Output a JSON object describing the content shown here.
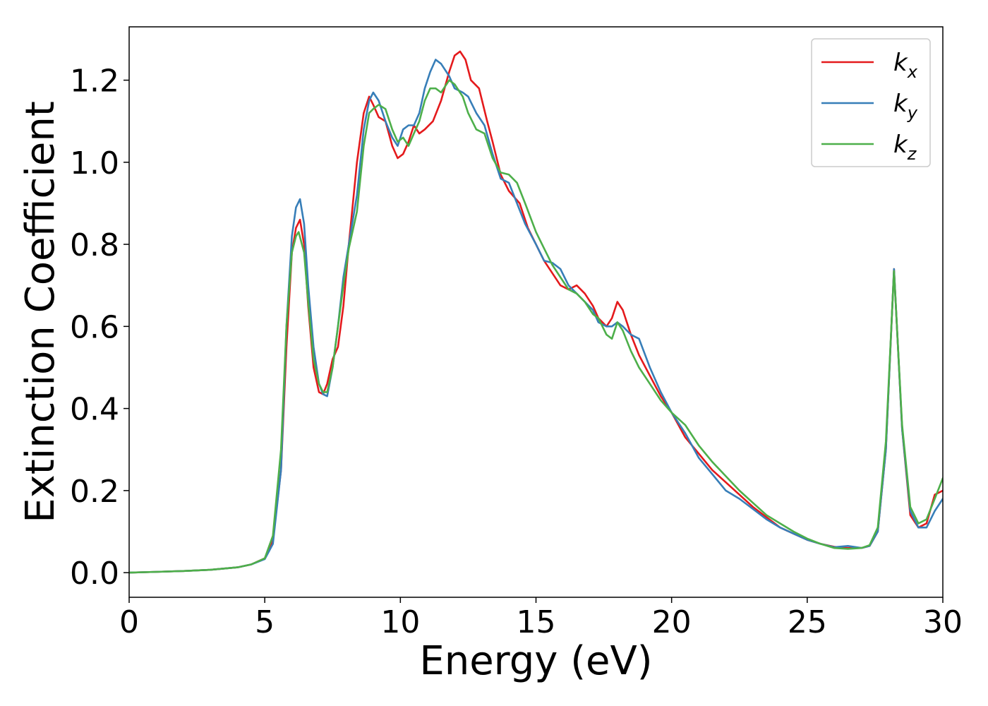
{
  "chart_data": {
    "type": "line",
    "xlabel": "Energy (eV)",
    "ylabel": "Extinction Coefficient",
    "xlim": [
      0,
      30
    ],
    "ylim": [
      -0.06,
      1.33
    ],
    "xticks": [
      0,
      5,
      10,
      15,
      20,
      25,
      30
    ],
    "yticks": [
      0.0,
      0.2,
      0.4,
      0.6,
      0.8,
      1.0,
      1.2
    ],
    "xtick_labels": [
      "0",
      "5",
      "10",
      "15",
      "20",
      "25",
      "30"
    ],
    "ytick_labels": [
      "0.0",
      "0.2",
      "0.4",
      "0.6",
      "0.8",
      "1.0",
      "1.2"
    ],
    "grid": false,
    "legend_position": "top-right",
    "series": [
      {
        "name": "k",
        "subscript": "x",
        "color": "#e41a1c",
        "points": [
          [
            0,
            0.0
          ],
          [
            1,
            0.002
          ],
          [
            2,
            0.004
          ],
          [
            3,
            0.007
          ],
          [
            4,
            0.013
          ],
          [
            4.5,
            0.02
          ],
          [
            5.0,
            0.035
          ],
          [
            5.3,
            0.08
          ],
          [
            5.6,
            0.25
          ],
          [
            5.8,
            0.55
          ],
          [
            6.0,
            0.78
          ],
          [
            6.15,
            0.84
          ],
          [
            6.3,
            0.86
          ],
          [
            6.45,
            0.8
          ],
          [
            6.6,
            0.65
          ],
          [
            6.8,
            0.5
          ],
          [
            7.0,
            0.44
          ],
          [
            7.15,
            0.435
          ],
          [
            7.3,
            0.46
          ],
          [
            7.5,
            0.52
          ],
          [
            7.7,
            0.55
          ],
          [
            7.9,
            0.65
          ],
          [
            8.1,
            0.8
          ],
          [
            8.4,
            1.0
          ],
          [
            8.65,
            1.12
          ],
          [
            8.85,
            1.16
          ],
          [
            9.0,
            1.14
          ],
          [
            9.2,
            1.11
          ],
          [
            9.45,
            1.1
          ],
          [
            9.7,
            1.04
          ],
          [
            9.9,
            1.01
          ],
          [
            10.1,
            1.02
          ],
          [
            10.3,
            1.05
          ],
          [
            10.5,
            1.09
          ],
          [
            10.7,
            1.07
          ],
          [
            10.9,
            1.08
          ],
          [
            11.2,
            1.1
          ],
          [
            11.5,
            1.15
          ],
          [
            11.8,
            1.22
          ],
          [
            12.0,
            1.26
          ],
          [
            12.2,
            1.27
          ],
          [
            12.4,
            1.25
          ],
          [
            12.6,
            1.2
          ],
          [
            12.9,
            1.18
          ],
          [
            13.2,
            1.1
          ],
          [
            13.4,
            1.05
          ],
          [
            13.7,
            0.97
          ],
          [
            14.0,
            0.93
          ],
          [
            14.4,
            0.9
          ],
          [
            14.7,
            0.84
          ],
          [
            15.0,
            0.8
          ],
          [
            15.3,
            0.76
          ],
          [
            15.6,
            0.73
          ],
          [
            15.9,
            0.7
          ],
          [
            16.2,
            0.69
          ],
          [
            16.5,
            0.7
          ],
          [
            16.8,
            0.68
          ],
          [
            17.1,
            0.65
          ],
          [
            17.3,
            0.62
          ],
          [
            17.6,
            0.6
          ],
          [
            17.8,
            0.62
          ],
          [
            18.0,
            0.66
          ],
          [
            18.2,
            0.64
          ],
          [
            18.5,
            0.58
          ],
          [
            18.8,
            0.53
          ],
          [
            19.2,
            0.48
          ],
          [
            19.6,
            0.43
          ],
          [
            20.0,
            0.39
          ],
          [
            20.5,
            0.33
          ],
          [
            21.0,
            0.29
          ],
          [
            21.5,
            0.25
          ],
          [
            22.0,
            0.22
          ],
          [
            22.5,
            0.19
          ],
          [
            23.0,
            0.16
          ],
          [
            23.5,
            0.135
          ],
          [
            24.0,
            0.11
          ],
          [
            24.5,
            0.095
          ],
          [
            25.0,
            0.08
          ],
          [
            25.5,
            0.07
          ],
          [
            26.0,
            0.063
          ],
          [
            26.5,
            0.06
          ],
          [
            27.0,
            0.06
          ],
          [
            27.3,
            0.065
          ],
          [
            27.6,
            0.1
          ],
          [
            27.9,
            0.3
          ],
          [
            28.2,
            0.74
          ],
          [
            28.5,
            0.35
          ],
          [
            28.8,
            0.14
          ],
          [
            29.1,
            0.11
          ],
          [
            29.4,
            0.12
          ],
          [
            29.7,
            0.19
          ],
          [
            30.0,
            0.2
          ]
        ]
      },
      {
        "name": "k",
        "subscript": "y",
        "color": "#377eb8",
        "points": [
          [
            0,
            0.0
          ],
          [
            1,
            0.002
          ],
          [
            2,
            0.004
          ],
          [
            3,
            0.007
          ],
          [
            4,
            0.013
          ],
          [
            4.5,
            0.02
          ],
          [
            5.0,
            0.033
          ],
          [
            5.3,
            0.07
          ],
          [
            5.6,
            0.25
          ],
          [
            5.8,
            0.6
          ],
          [
            6.0,
            0.82
          ],
          [
            6.15,
            0.89
          ],
          [
            6.3,
            0.91
          ],
          [
            6.45,
            0.85
          ],
          [
            6.6,
            0.7
          ],
          [
            6.8,
            0.55
          ],
          [
            7.0,
            0.46
          ],
          [
            7.15,
            0.435
          ],
          [
            7.3,
            0.43
          ],
          [
            7.5,
            0.5
          ],
          [
            7.7,
            0.6
          ],
          [
            7.9,
            0.72
          ],
          [
            8.1,
            0.8
          ],
          [
            8.4,
            0.92
          ],
          [
            8.65,
            1.08
          ],
          [
            8.85,
            1.15
          ],
          [
            9.0,
            1.17
          ],
          [
            9.2,
            1.15
          ],
          [
            9.45,
            1.1
          ],
          [
            9.7,
            1.06
          ],
          [
            9.9,
            1.04
          ],
          [
            10.1,
            1.08
          ],
          [
            10.3,
            1.09
          ],
          [
            10.5,
            1.09
          ],
          [
            10.7,
            1.12
          ],
          [
            10.9,
            1.18
          ],
          [
            11.1,
            1.22
          ],
          [
            11.3,
            1.25
          ],
          [
            11.5,
            1.24
          ],
          [
            11.8,
            1.21
          ],
          [
            12.0,
            1.18
          ],
          [
            12.3,
            1.17
          ],
          [
            12.5,
            1.16
          ],
          [
            12.8,
            1.12
          ],
          [
            13.1,
            1.09
          ],
          [
            13.4,
            1.02
          ],
          [
            13.7,
            0.96
          ],
          [
            14.0,
            0.95
          ],
          [
            14.3,
            0.9
          ],
          [
            14.6,
            0.85
          ],
          [
            15.0,
            0.8
          ],
          [
            15.3,
            0.76
          ],
          [
            15.6,
            0.755
          ],
          [
            15.9,
            0.74
          ],
          [
            16.2,
            0.7
          ],
          [
            16.5,
            0.68
          ],
          [
            16.8,
            0.66
          ],
          [
            17.1,
            0.64
          ],
          [
            17.3,
            0.61
          ],
          [
            17.6,
            0.6
          ],
          [
            17.8,
            0.6
          ],
          [
            18.0,
            0.61
          ],
          [
            18.2,
            0.6
          ],
          [
            18.5,
            0.58
          ],
          [
            18.8,
            0.57
          ],
          [
            19.2,
            0.5
          ],
          [
            19.6,
            0.44
          ],
          [
            20.0,
            0.39
          ],
          [
            20.5,
            0.34
          ],
          [
            21.0,
            0.28
          ],
          [
            21.5,
            0.24
          ],
          [
            22.0,
            0.2
          ],
          [
            22.5,
            0.18
          ],
          [
            23.0,
            0.155
          ],
          [
            23.5,
            0.13
          ],
          [
            24.0,
            0.11
          ],
          [
            24.5,
            0.095
          ],
          [
            25.0,
            0.08
          ],
          [
            25.5,
            0.07
          ],
          [
            26.0,
            0.062
          ],
          [
            26.5,
            0.065
          ],
          [
            27.0,
            0.06
          ],
          [
            27.3,
            0.065
          ],
          [
            27.6,
            0.1
          ],
          [
            27.9,
            0.3
          ],
          [
            28.2,
            0.74
          ],
          [
            28.5,
            0.35
          ],
          [
            28.8,
            0.15
          ],
          [
            29.1,
            0.11
          ],
          [
            29.4,
            0.11
          ],
          [
            29.7,
            0.15
          ],
          [
            30.0,
            0.18
          ]
        ]
      },
      {
        "name": "k",
        "subscript": "z",
        "color": "#4daf4a",
        "points": [
          [
            0,
            0.0
          ],
          [
            1,
            0.002
          ],
          [
            2,
            0.004
          ],
          [
            3,
            0.007
          ],
          [
            4,
            0.013
          ],
          [
            4.5,
            0.02
          ],
          [
            5.0,
            0.035
          ],
          [
            5.3,
            0.09
          ],
          [
            5.6,
            0.3
          ],
          [
            5.8,
            0.6
          ],
          [
            6.0,
            0.78
          ],
          [
            6.15,
            0.82
          ],
          [
            6.25,
            0.83
          ],
          [
            6.45,
            0.78
          ],
          [
            6.6,
            0.66
          ],
          [
            6.8,
            0.52
          ],
          [
            7.0,
            0.46
          ],
          [
            7.15,
            0.44
          ],
          [
            7.3,
            0.44
          ],
          [
            7.5,
            0.5
          ],
          [
            7.7,
            0.6
          ],
          [
            7.9,
            0.7
          ],
          [
            8.1,
            0.79
          ],
          [
            8.4,
            0.88
          ],
          [
            8.65,
            1.04
          ],
          [
            8.85,
            1.12
          ],
          [
            9.0,
            1.13
          ],
          [
            9.2,
            1.14
          ],
          [
            9.45,
            1.13
          ],
          [
            9.7,
            1.08
          ],
          [
            9.9,
            1.05
          ],
          [
            10.1,
            1.06
          ],
          [
            10.3,
            1.04
          ],
          [
            10.5,
            1.07
          ],
          [
            10.7,
            1.1
          ],
          [
            10.9,
            1.15
          ],
          [
            11.1,
            1.18
          ],
          [
            11.3,
            1.18
          ],
          [
            11.5,
            1.17
          ],
          [
            11.8,
            1.2
          ],
          [
            12.0,
            1.19
          ],
          [
            12.3,
            1.16
          ],
          [
            12.5,
            1.12
          ],
          [
            12.8,
            1.08
          ],
          [
            13.1,
            1.07
          ],
          [
            13.4,
            1.01
          ],
          [
            13.7,
            0.975
          ],
          [
            14.0,
            0.97
          ],
          [
            14.3,
            0.95
          ],
          [
            14.6,
            0.9
          ],
          [
            15.0,
            0.83
          ],
          [
            15.3,
            0.79
          ],
          [
            15.6,
            0.75
          ],
          [
            15.9,
            0.72
          ],
          [
            16.2,
            0.69
          ],
          [
            16.5,
            0.68
          ],
          [
            16.8,
            0.66
          ],
          [
            17.1,
            0.63
          ],
          [
            17.3,
            0.62
          ],
          [
            17.6,
            0.58
          ],
          [
            17.8,
            0.57
          ],
          [
            18.0,
            0.61
          ],
          [
            18.2,
            0.59
          ],
          [
            18.5,
            0.54
          ],
          [
            18.8,
            0.5
          ],
          [
            19.2,
            0.46
          ],
          [
            19.6,
            0.42
          ],
          [
            20.0,
            0.39
          ],
          [
            20.5,
            0.36
          ],
          [
            21.0,
            0.31
          ],
          [
            21.5,
            0.27
          ],
          [
            22.0,
            0.235
          ],
          [
            22.5,
            0.2
          ],
          [
            23.0,
            0.17
          ],
          [
            23.5,
            0.14
          ],
          [
            24.0,
            0.12
          ],
          [
            24.5,
            0.1
          ],
          [
            25.0,
            0.083
          ],
          [
            25.5,
            0.07
          ],
          [
            26.0,
            0.06
          ],
          [
            26.5,
            0.058
          ],
          [
            27.0,
            0.06
          ],
          [
            27.3,
            0.067
          ],
          [
            27.6,
            0.11
          ],
          [
            27.9,
            0.32
          ],
          [
            28.2,
            0.735
          ],
          [
            28.5,
            0.36
          ],
          [
            28.8,
            0.16
          ],
          [
            29.1,
            0.12
          ],
          [
            29.4,
            0.13
          ],
          [
            29.7,
            0.18
          ],
          [
            30.0,
            0.23
          ]
        ]
      }
    ]
  }
}
